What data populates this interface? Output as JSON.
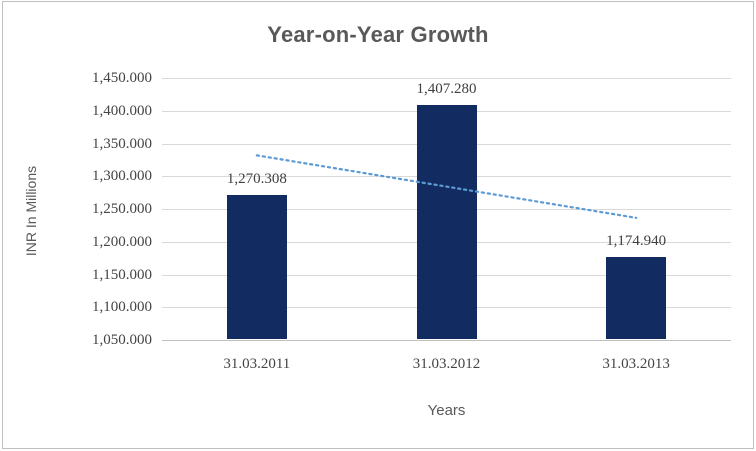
{
  "chart_data": {
    "type": "bar",
    "title": "Year-on-Year Growth",
    "xlabel": "Years",
    "ylabel": "INR In Millions",
    "categories": [
      "31.03.2011",
      "31.03.2012",
      "31.03.2013"
    ],
    "values": [
      1270.308,
      1407.28,
      1174.94
    ],
    "data_labels": [
      "1,270.308",
      "1,407.280",
      "1,174.940"
    ],
    "ylim": [
      1050,
      1450
    ],
    "ytick_step": 50,
    "ytick_labels": [
      "1,050.000",
      "1,100.000",
      "1,150.000",
      "1,200.000",
      "1,250.000",
      "1,300.000",
      "1,350.000",
      "1,400.000",
      "1,450.000"
    ],
    "grid": true,
    "legend": "none",
    "bar_color": "#122c61",
    "gridline_color": "#d9d9d9",
    "title_color": "#595959",
    "label_color": "#3f3f3f",
    "trendline": {
      "style": "dotted",
      "color": "#5b9bd5",
      "start_value": 1331.9,
      "end_value": 1236.5
    }
  }
}
